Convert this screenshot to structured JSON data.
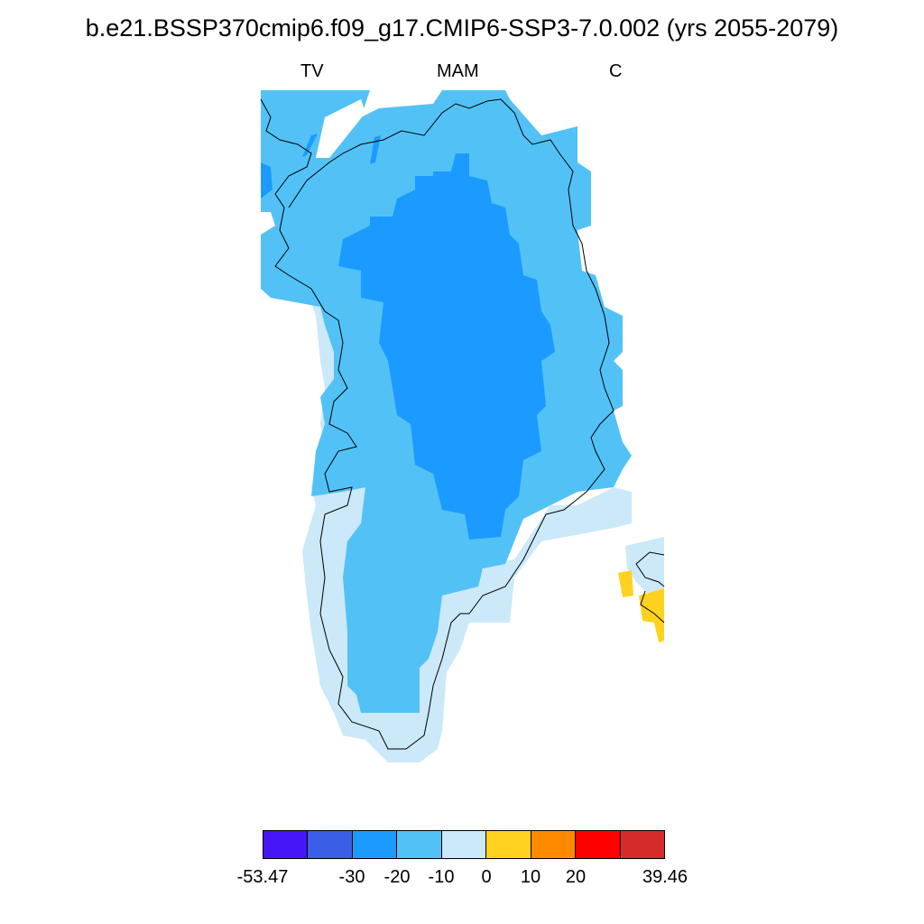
{
  "title": "b.e21.BSSP370cmip6.f09_g17.CMIP6-SSP3-7.0.002 (yrs 2055-2079)",
  "sublabels": {
    "left": "TV",
    "center": "MAM",
    "right": "C"
  },
  "colorbar": {
    "colors": [
      "#4616f5",
      "#3b5ee6",
      "#1b9bff",
      "#52c2f6",
      "#cbe9f8",
      "#ffd21f",
      "#ff8a00",
      "#ff0000",
      "#d62b2b"
    ],
    "labels": [
      "-53.47",
      "-30",
      "-20",
      "-10",
      "0",
      "10",
      "20",
      "39.46"
    ]
  },
  "map": {
    "fill_colors": {
      "light": "#cbe9f8",
      "medium": "#52c2f6",
      "dark": "#1b9bff",
      "warm": "#ffd21f"
    },
    "coastline_color": "#000000"
  }
}
